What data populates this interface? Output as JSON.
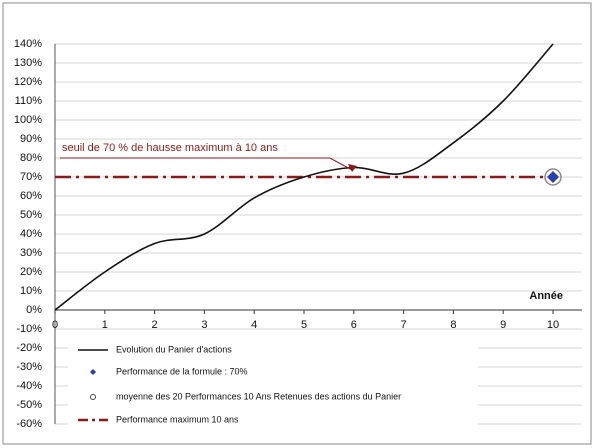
{
  "chart_data": {
    "type": "line",
    "annotation": "seuil de 70 % de hausse maximum à 10 ans",
    "xlabel": "Année",
    "x": [
      0,
      1,
      2,
      3,
      4,
      5,
      6,
      7,
      8,
      9,
      10
    ],
    "xlim": [
      0,
      10
    ],
    "xticks": [
      0,
      1,
      2,
      3,
      4,
      5,
      6,
      7,
      8,
      9,
      10
    ],
    "ylim": [
      -60,
      140
    ],
    "yticks": [
      {
        "value": -60,
        "label": "-60%"
      },
      {
        "value": -50,
        "label": "-50%"
      },
      {
        "value": -40,
        "label": "-40%"
      },
      {
        "value": -30,
        "label": "-30%"
      },
      {
        "value": -20,
        "label": "-20%"
      },
      {
        "value": -10,
        "label": "-10%"
      },
      {
        "value": 0,
        "label": "0%"
      },
      {
        "value": 10,
        "label": "10%"
      },
      {
        "value": 20,
        "label": "20%"
      },
      {
        "value": 30,
        "label": "30%"
      },
      {
        "value": 40,
        "label": "40%"
      },
      {
        "value": 50,
        "label": "50%"
      },
      {
        "value": 60,
        "label": "60%"
      },
      {
        "value": 70,
        "label": "70%"
      },
      {
        "value": 80,
        "label": "80%"
      },
      {
        "value": 90,
        "label": "90%"
      },
      {
        "value": 100,
        "label": "100%"
      },
      {
        "value": 110,
        "label": "110%"
      },
      {
        "value": 120,
        "label": "120%"
      },
      {
        "value": 130,
        "label": "130%"
      },
      {
        "value": 140,
        "label": "140%"
      }
    ],
    "grid": true,
    "series": [
      {
        "name": "Evolution du Panier d'actions",
        "color": "#111111",
        "style": "smooth",
        "values": [
          0,
          20,
          35,
          40,
          59,
          70,
          75,
          72,
          88,
          110,
          140
        ]
      },
      {
        "name": "Performance de la formule : 70%",
        "color": "#2a3fae",
        "style": "diamond",
        "values": [
          null,
          null,
          null,
          null,
          null,
          null,
          null,
          null,
          null,
          null,
          70
        ]
      },
      {
        "name": "moyenne des 20 Performances 10 Ans Retenues des actions du Panier",
        "color": "#8a8a8a",
        "style": "circle",
        "values": [
          null,
          null,
          null,
          null,
          null,
          null,
          null,
          null,
          null,
          null,
          70
        ]
      },
      {
        "name": "Performance maximum 10 ans",
        "color": "#8b1a1a",
        "style": "dashdot",
        "values": [
          70,
          70,
          70,
          70,
          70,
          70,
          70,
          70,
          70,
          70,
          70
        ]
      }
    ]
  }
}
